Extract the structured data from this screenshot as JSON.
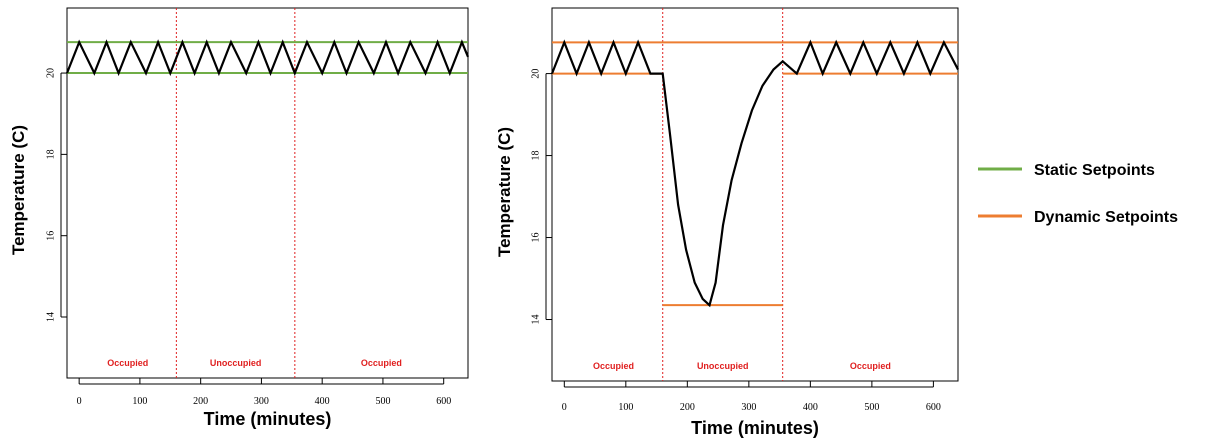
{
  "chart_data": [
    {
      "type": "line",
      "xlabel": "Time (minutes)",
      "ylabel": "Temperature (C)",
      "xticks": [
        0,
        100,
        200,
        300,
        400,
        500,
        600
      ],
      "yticks": [
        14,
        16,
        18,
        20
      ],
      "xlim": [
        -20,
        640
      ],
      "ylim": [
        12.5,
        21.6
      ],
      "grid": false,
      "periods": [
        {
          "label": "Occupied",
          "start": 0,
          "end": 160
        },
        {
          "label": "Unoccupied",
          "start": 160,
          "end": 355
        },
        {
          "label": "Occupied",
          "start": 355,
          "end": 640
        }
      ],
      "period_dividers": [
        160,
        355
      ],
      "setpoint_color": "#70ad47",
      "setpoints": [
        {
          "x": [
            -20,
            640
          ],
          "y": [
            20.76,
            20.76
          ]
        },
        {
          "x": [
            -20,
            640
          ],
          "y": [
            20.0,
            20.0
          ]
        }
      ],
      "series": [
        {
          "color": "#000000",
          "x": [
            -20,
            0,
            25,
            45,
            65,
            85,
            110,
            130,
            150,
            170,
            190,
            210,
            230,
            250,
            275,
            295,
            315,
            335,
            355,
            375,
            400,
            420,
            440,
            460,
            485,
            505,
            525,
            545,
            570,
            590,
            610,
            630,
            640
          ],
          "y": [
            20.0,
            20.76,
            20.0,
            20.76,
            20.0,
            20.76,
            20.0,
            20.76,
            20.0,
            20.76,
            20.0,
            20.76,
            20.0,
            20.76,
            20.0,
            20.76,
            20.0,
            20.76,
            20.0,
            20.76,
            20.0,
            20.76,
            20.0,
            20.76,
            20.0,
            20.76,
            20.0,
            20.76,
            20.0,
            20.76,
            20.0,
            20.76,
            20.4
          ]
        }
      ]
    },
    {
      "type": "line",
      "xlabel": "Time (minutes)",
      "ylabel": "Temperature (C)",
      "xticks": [
        0,
        100,
        200,
        300,
        400,
        500,
        600
      ],
      "yticks": [
        14,
        16,
        18,
        20
      ],
      "xlim": [
        -20,
        640
      ],
      "ylim": [
        12.5,
        21.6
      ],
      "grid": false,
      "periods": [
        {
          "label": "Occupied",
          "start": 0,
          "end": 160
        },
        {
          "label": "Unoccupied",
          "start": 160,
          "end": 355
        },
        {
          "label": "Occupied",
          "start": 355,
          "end": 640
        }
      ],
      "period_dividers": [
        160,
        355
      ],
      "setpoint_color": "#ed7d31",
      "setpoints": [
        {
          "x": [
            -20,
            640
          ],
          "y": [
            20.76,
            20.76
          ]
        },
        {
          "x": [
            -20,
            160
          ],
          "y": [
            20.0,
            20.0
          ]
        },
        {
          "x": [
            160,
            355
          ],
          "y": [
            14.35,
            14.35
          ]
        },
        {
          "x": [
            355,
            640
          ],
          "y": [
            20.0,
            20.0
          ]
        }
      ],
      "series": [
        {
          "color": "#000000",
          "x": [
            -20,
            0,
            20,
            40,
            60,
            80,
            100,
            120,
            140,
            160,
            172,
            185,
            198,
            212,
            225,
            236,
            246,
            258,
            272,
            288,
            305,
            322,
            340,
            355,
            378,
            400,
            420,
            442,
            465,
            486,
            508,
            530,
            552,
            574,
            595,
            617,
            640
          ],
          "y": [
            20.0,
            20.76,
            20.0,
            20.76,
            20.0,
            20.76,
            20.0,
            20.76,
            20.0,
            20.0,
            18.5,
            16.8,
            15.7,
            14.9,
            14.5,
            14.35,
            14.9,
            16.3,
            17.4,
            18.3,
            19.1,
            19.7,
            20.1,
            20.3,
            20.0,
            20.76,
            20.0,
            20.76,
            20.0,
            20.76,
            20.0,
            20.76,
            20.0,
            20.76,
            20.0,
            20.76,
            20.1
          ]
        }
      ]
    }
  ],
  "legend": {
    "items": [
      {
        "label": "Static Setpoints",
        "color": "#70ad47"
      },
      {
        "label": "Dynamic Setpoints",
        "color": "#ed7d31"
      }
    ]
  }
}
